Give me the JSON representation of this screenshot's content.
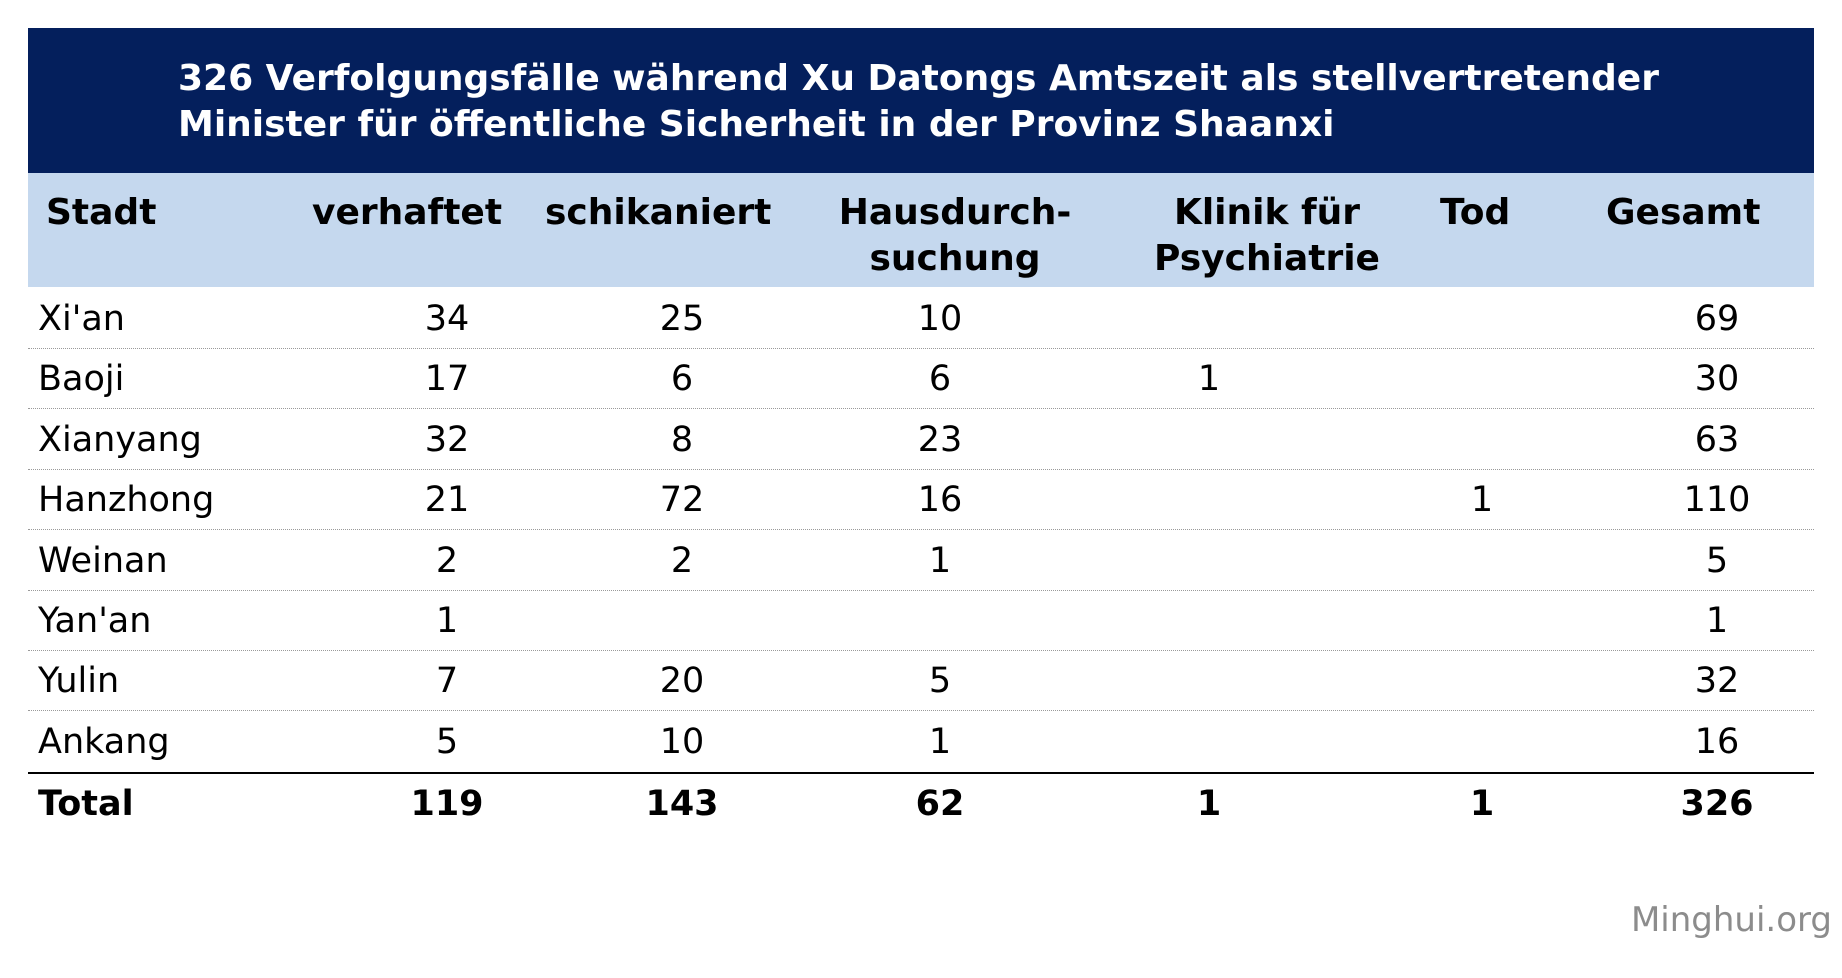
{
  "chart_data": {
    "type": "table",
    "title": "326 Verfolgungsfälle während Xu Datongs Amtszeit als stellvertretender Minister für öffentliche Sicherheit in der Provinz Shaanxi",
    "columns": [
      "Stadt",
      "verhaftet",
      "schikaniert",
      "Hausdurch-suchung",
      "Klinik für Psychiatrie",
      "Tod",
      "Gesamt"
    ],
    "header": {
      "stadt": "Stadt",
      "verhaftet": "verhaftet",
      "schikaniert": "schikaniert",
      "haus_line1": "Hausdurch-",
      "haus_line2": "suchung",
      "klinik_line1": "Klinik für",
      "klinik_line2": "Psychiatrie",
      "tod": "Tod",
      "gesamt": "Gesamt"
    },
    "rows": [
      {
        "stadt": "Xi'an",
        "verhaftet": "34",
        "schikaniert": "25",
        "haus": "10",
        "klinik": "",
        "tod": "",
        "gesamt": "69"
      },
      {
        "stadt": "Baoji",
        "verhaftet": "17",
        "schikaniert": "6",
        "haus": "6",
        "klinik": "1",
        "tod": "",
        "gesamt": "30"
      },
      {
        "stadt": "Xianyang",
        "verhaftet": "32",
        "schikaniert": "8",
        "haus": "23",
        "klinik": "",
        "tod": "",
        "gesamt": "63"
      },
      {
        "stadt": "Hanzhong",
        "verhaftet": "21",
        "schikaniert": "72",
        "haus": "16",
        "klinik": "",
        "tod": "1",
        "gesamt": "110"
      },
      {
        "stadt": "Weinan",
        "verhaftet": "2",
        "schikaniert": "2",
        "haus": "1",
        "klinik": "",
        "tod": "",
        "gesamt": "5"
      },
      {
        "stadt": "Yan'an",
        "verhaftet": "1",
        "schikaniert": "",
        "haus": "",
        "klinik": "",
        "tod": "",
        "gesamt": "1"
      },
      {
        "stadt": "Yulin",
        "verhaftet": "7",
        "schikaniert": "20",
        "haus": "5",
        "klinik": "",
        "tod": "",
        "gesamt": "32"
      },
      {
        "stadt": "Ankang",
        "verhaftet": "5",
        "schikaniert": "10",
        "haus": "1",
        "klinik": "",
        "tod": "",
        "gesamt": "16"
      }
    ],
    "total": {
      "stadt": "Total",
      "verhaftet": "119",
      "schikaniert": "143",
      "haus": "62",
      "klinik": "1",
      "tod": "1",
      "gesamt": "326"
    }
  },
  "source": "Minghui.org",
  "colors": {
    "title_band": "#041f5c",
    "header_band": "#c5d8ee",
    "title_text": "#ffffff",
    "source_text": "#8c8c8c"
  }
}
